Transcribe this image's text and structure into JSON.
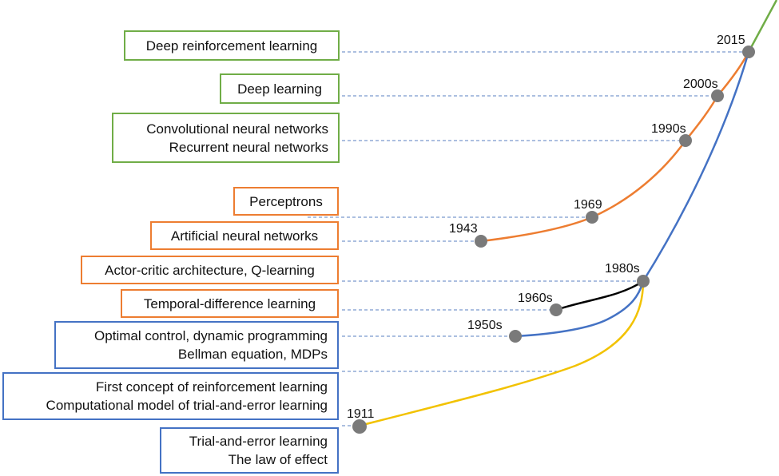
{
  "colors": {
    "green": "#70ad47",
    "orange": "#ed7d31",
    "blue": "#4472c4",
    "yellow": "#f2c200",
    "black": "#000000",
    "node": "#7a7a7a",
    "leader": "#5a7fc0"
  },
  "boxes": {
    "deep_rl": [
      "Deep reinforcement learning"
    ],
    "deep_learning": [
      "Deep learning"
    ],
    "cnn_rnn": [
      "Convolutional neural networks",
      "Recurrent neural networks"
    ],
    "perceptrons": [
      "Perceptrons"
    ],
    "ann": [
      "Artificial neural networks"
    ],
    "actor_critic": [
      "Actor-critic architecture, Q-learning"
    ],
    "td": [
      "Temporal-difference learning"
    ],
    "optimal_control": [
      "Optimal control, dynamic programming",
      "Bellman equation, MDPs"
    ],
    "first_rl": [
      "First concept of reinforcement learning",
      "Computational model of trial-and-error learning"
    ],
    "trial_error": [
      "Trial-and-error learning",
      "The law of effect"
    ]
  },
  "years": {
    "y2015": "2015",
    "y2000s": "2000s",
    "y1990s": "1990s",
    "y1969": "1969",
    "y1943": "1943",
    "y1980s": "1980s",
    "y1960s": "1960s",
    "y1950s": "1950s",
    "y1911": "1911"
  }
}
